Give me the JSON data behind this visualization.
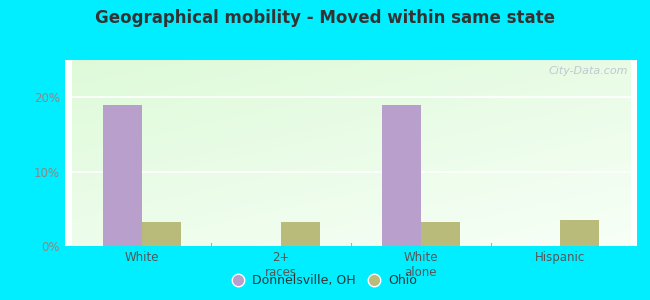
{
  "title": "Geographical mobility - Moved within same state",
  "categories": [
    "White",
    "2+\nraces",
    "White\nalone",
    "Hispanic"
  ],
  "donnelsville_values": [
    19.0,
    0.0,
    19.0,
    0.0
  ],
  "ohio_values": [
    3.2,
    3.2,
    3.2,
    3.5
  ],
  "donnelsville_color": "#b89fcc",
  "ohio_color": "#b8bb7a",
  "background_outer": "#00eeff",
  "ylim": [
    0,
    25
  ],
  "yticks": [
    0,
    10,
    20
  ],
  "ytick_labels": [
    "0%",
    "10%",
    "20%"
  ],
  "legend_label1": "Donnelsville, OH",
  "legend_label2": "Ohio",
  "bar_width": 0.28,
  "group_positions": [
    0,
    1,
    2,
    3
  ]
}
